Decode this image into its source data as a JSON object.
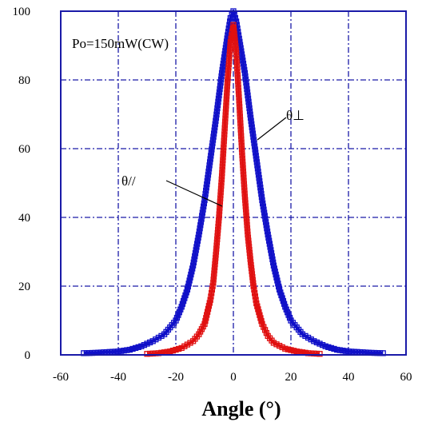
{
  "chart_data": {
    "type": "scatter",
    "xlabel": "Angle (°)",
    "ylabel": "",
    "xlim": [
      -60,
      60
    ],
    "ylim": [
      0,
      100
    ],
    "x_ticks": [
      "-60",
      "-40",
      "-20",
      "0",
      "20",
      "40",
      "60"
    ],
    "y_ticks": [
      "0",
      "20",
      "40",
      "60",
      "80",
      "100"
    ],
    "grid": true,
    "annotations": {
      "condition": "Po=150mW(CW)",
      "perp_label": "θ⊥",
      "par_label": "θ//"
    },
    "series": [
      {
        "key": "perp",
        "color": "#1010c8",
        "x": [
          -52,
          -48,
          -44,
          -40,
          -36,
          -32,
          -28,
          -24,
          -20,
          -18,
          -16,
          -14,
          -12,
          -10,
          -8,
          -6,
          -4,
          -2,
          -1,
          0,
          1,
          2,
          4,
          6,
          8,
          10,
          12,
          14,
          16,
          18,
          20,
          24,
          28,
          32,
          36,
          40,
          44,
          48,
          52
        ],
        "y": [
          0.5,
          0.6,
          0.8,
          1,
          1.5,
          2.5,
          4,
          6,
          10,
          14,
          19,
          26,
          35,
          45,
          57,
          69,
          82,
          93,
          98,
          100,
          97,
          92,
          82,
          69,
          57,
          45,
          35,
          26,
          19,
          14,
          10,
          6,
          4,
          2.5,
          1.5,
          1,
          0.8,
          0.6,
          0.5
        ]
      },
      {
        "key": "par",
        "color": "#e01010",
        "x": [
          -30,
          -26,
          -22,
          -18,
          -14,
          -12,
          -10,
          -8,
          -7,
          -6,
          -5,
          -4,
          -3,
          -2,
          -1,
          0,
          1,
          2,
          3,
          4,
          5,
          6,
          7,
          8,
          10,
          12,
          14,
          18,
          22,
          26,
          30
        ],
        "y": [
          0.3,
          0.5,
          1,
          2,
          4,
          6,
          9,
          16,
          21,
          30,
          40,
          52,
          66,
          80,
          91,
          96,
          88,
          74,
          59,
          46,
          35,
          27,
          20,
          15,
          9,
          5.5,
          3.5,
          1.8,
          1,
          0.5,
          0.3
        ]
      }
    ]
  }
}
